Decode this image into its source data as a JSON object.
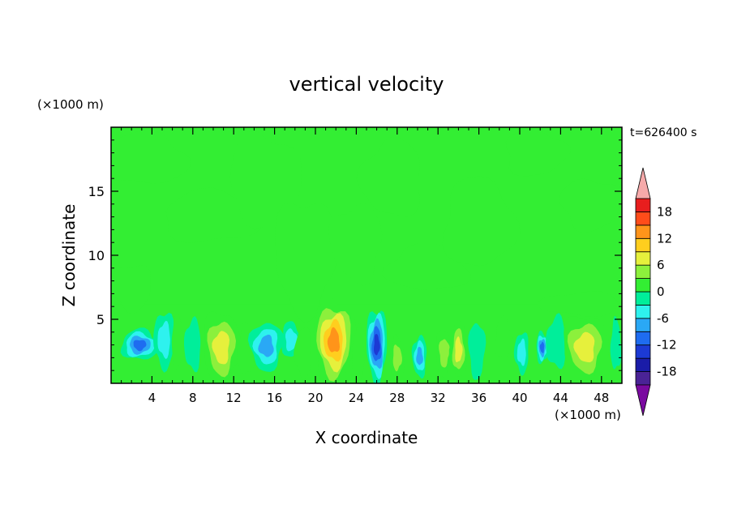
{
  "chart_data": {
    "type": "heatmap",
    "title": "vertical velocity",
    "xlabel": "X coordinate",
    "ylabel": "Z coordinate",
    "x_unit": "(×1000 m)",
    "y_unit": "(×1000 m)",
    "time_label": "t=626400 s",
    "xlim": [
      0,
      50
    ],
    "ylim": [
      0,
      20
    ],
    "x_ticks": [
      4,
      8,
      12,
      16,
      20,
      24,
      28,
      32,
      36,
      40,
      44,
      48
    ],
    "y_ticks": [
      5,
      10,
      15
    ],
    "colorbar": {
      "ticks": [
        18,
        12,
        6,
        0,
        -6,
        -12,
        -18
      ],
      "levels": [
        -21,
        -18,
        -15,
        -12,
        -9,
        -6,
        -3,
        0,
        3,
        6,
        9,
        12,
        15,
        18,
        21
      ],
      "extend": "both",
      "colors": [
        "#7a0aa0",
        "#4a2396",
        "#1a1ca8",
        "#1c3ad4",
        "#1e6cf0",
        "#2aa8f5",
        "#2ef2ee",
        "#00ee9a",
        "#33ee33",
        "#8cf03c",
        "#e6f03c",
        "#ffce1e",
        "#ff941a",
        "#ff4c1a",
        "#e81e1e",
        "#f6aaaa"
      ]
    },
    "background_w": 0.5,
    "cells": [
      {
        "x": 2.8,
        "z": 3.0,
        "w": -12,
        "rx": 1.8,
        "rz": 1.2
      },
      {
        "x": 5.2,
        "z": 3.4,
        "w": -6,
        "rx": 1.0,
        "rz": 2.2
      },
      {
        "x": 6.6,
        "z": 3.2,
        "w": 4,
        "rx": 0.7,
        "rz": 2.0
      },
      {
        "x": 8.0,
        "z": 3.0,
        "w": -5,
        "rx": 0.8,
        "rz": 2.0
      },
      {
        "x": 10.8,
        "z": 2.8,
        "w": 11,
        "rx": 1.8,
        "rz": 2.9
      },
      {
        "x": 13.2,
        "z": 2.6,
        "w": 4,
        "rx": 0.8,
        "rz": 2.0
      },
      {
        "x": 15.2,
        "z": 2.9,
        "w": -10,
        "rx": 1.6,
        "rz": 1.9
      },
      {
        "x": 17.6,
        "z": 3.4,
        "w": -7,
        "rx": 0.9,
        "rz": 1.4
      },
      {
        "x": 18.8,
        "z": 2.4,
        "w": 3,
        "rx": 0.8,
        "rz": 2.0
      },
      {
        "x": 21.8,
        "z": 3.3,
        "w": 17,
        "rx": 2.0,
        "rz": 3.3
      },
      {
        "x": 24.2,
        "z": 2.4,
        "w": 3,
        "rx": 0.6,
        "rz": 2.0
      },
      {
        "x": 26.0,
        "z": 3.0,
        "w": -17,
        "rx": 1.0,
        "rz": 2.9
      },
      {
        "x": 28.0,
        "z": 2.0,
        "w": 8,
        "rx": 0.7,
        "rz": 1.6
      },
      {
        "x": 30.2,
        "z": 2.1,
        "w": -9,
        "rx": 0.7,
        "rz": 1.6
      },
      {
        "x": 32.6,
        "z": 2.4,
        "w": 6,
        "rx": 0.8,
        "rz": 1.8
      },
      {
        "x": 34.0,
        "z": 2.6,
        "w": 9,
        "rx": 0.8,
        "rz": 2.2
      },
      {
        "x": 35.8,
        "z": 2.6,
        "w": -5,
        "rx": 0.8,
        "rz": 2.2
      },
      {
        "x": 38.4,
        "z": 3.5,
        "w": 3,
        "rx": 0.8,
        "rz": 1.6
      },
      {
        "x": 40.2,
        "z": 2.4,
        "w": -6,
        "rx": 0.7,
        "rz": 1.6
      },
      {
        "x": 42.2,
        "z": 2.8,
        "w": -12,
        "rx": 0.6,
        "rz": 1.2
      },
      {
        "x": 43.6,
        "z": 3.2,
        "w": -4,
        "rx": 1.0,
        "rz": 2.0
      },
      {
        "x": 46.4,
        "z": 2.8,
        "w": 11,
        "rx": 2.2,
        "rz": 2.6
      },
      {
        "x": 49.4,
        "z": 3.0,
        "w": -4,
        "rx": 0.5,
        "rz": 2.0
      }
    ],
    "upper_patches": [
      {
        "x": 3.0,
        "z": 17.5,
        "w": 1.8,
        "rx": 4.5,
        "rz": 2.0
      },
      {
        "x": 10.0,
        "z": 13.0,
        "w": 1.8,
        "rx": 5.0,
        "rz": 2.0
      },
      {
        "x": 15.0,
        "z": 16.0,
        "w": 1.8,
        "rx": 3.5,
        "rz": 3.5
      },
      {
        "x": 19.0,
        "z": 10.0,
        "w": 1.8,
        "rx": 3.0,
        "rz": 4.5
      },
      {
        "x": 24.0,
        "z": 11.0,
        "w": 1.8,
        "rx": 2.5,
        "rz": 3.0
      },
      {
        "x": 27.5,
        "z": 16.0,
        "w": 1.8,
        "rx": 3.0,
        "rz": 3.0
      },
      {
        "x": 31.0,
        "z": 9.0,
        "w": 1.8,
        "rx": 4.0,
        "rz": 1.8
      },
      {
        "x": 36.0,
        "z": 12.5,
        "w": 1.8,
        "rx": 3.5,
        "rz": 3.5
      },
      {
        "x": 41.5,
        "z": 18.0,
        "w": 1.8,
        "rx": 3.0,
        "rz": 1.8
      },
      {
        "x": 47.0,
        "z": 14.0,
        "w": 1.8,
        "rx": 3.0,
        "rz": 2.0
      },
      {
        "x": 2.0,
        "z": 7.5,
        "w": 1.8,
        "rx": 2.0,
        "rz": 1.8
      },
      {
        "x": 46.0,
        "z": 6.2,
        "w": 1.8,
        "rx": 4.0,
        "rz": 0.9
      }
    ]
  }
}
